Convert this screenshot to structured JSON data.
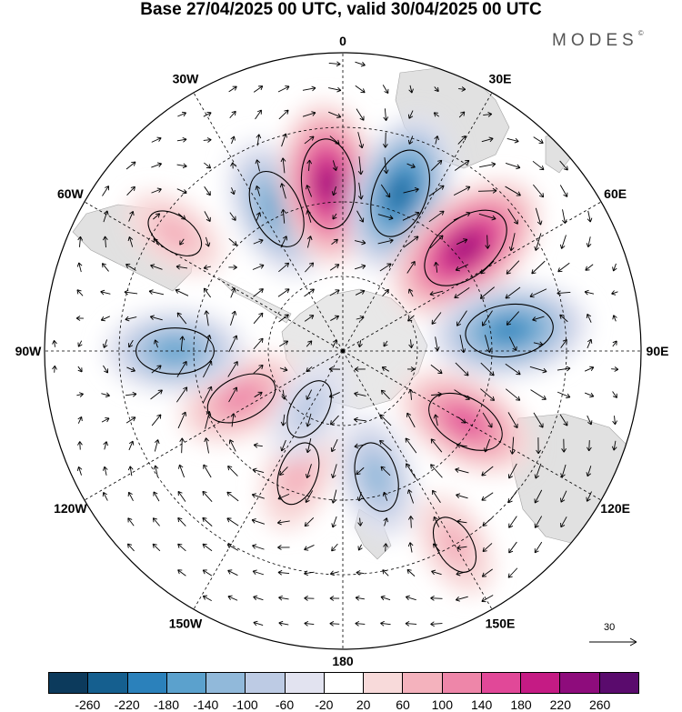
{
  "title": "Base 27/04/2025 00 UTC, valid 30/04/2025 00 UTC",
  "brand": "MODES",
  "brand_mark": "©",
  "longitude_labels": [
    "0",
    "30E",
    "60E",
    "90E",
    "120E",
    "150E",
    "180",
    "150W",
    "120W",
    "90W",
    "60W",
    "30W"
  ],
  "longitude_angles": [
    0,
    30,
    60,
    90,
    120,
    150,
    180,
    -150,
    -120,
    -90,
    -60,
    -30
  ],
  "vector_reference": {
    "label": "30",
    "value": 30
  },
  "colorbar": {
    "colors": [
      "#0c3a5c",
      "#155f8f",
      "#2b81bb",
      "#5ba1cd",
      "#91b9da",
      "#bdcbe4",
      "#e2e3f0",
      "#ffffff",
      "#f8dada",
      "#f4b2bd",
      "#ee86a9",
      "#e14898",
      "#c51b84",
      "#8e0c7c",
      "#5a0b6d"
    ],
    "tick_labels": [
      "-260",
      "-220",
      "-180",
      "-140",
      "-100",
      "-60",
      "-20",
      "20",
      "60",
      "100",
      "140",
      "180",
      "220",
      "260"
    ]
  },
  "anomaly_centers": [
    {
      "lon": -25,
      "lat": -48,
      "value": -160
    },
    {
      "lon": -55,
      "lat": -35,
      "value": 60
    },
    {
      "lon": -5,
      "lat": -45,
      "value": 210
    },
    {
      "lon": 20,
      "lat": -45,
      "value": -210
    },
    {
      "lon": 50,
      "lat": -47,
      "value": 240
    },
    {
      "lon": 83,
      "lat": -45,
      "value": -200
    },
    {
      "lon": 120,
      "lat": -52,
      "value": 160
    },
    {
      "lon": 150,
      "lat": -30,
      "value": 60
    },
    {
      "lon": 165,
      "lat": -55,
      "value": -110
    },
    {
      "lon": -160,
      "lat": -55,
      "value": 80
    },
    {
      "lon": -115,
      "lat": -60,
      "value": 120
    },
    {
      "lon": -90,
      "lat": -45,
      "value": -150
    },
    {
      "lon": -150,
      "lat": -72,
      "value": -70
    }
  ]
}
